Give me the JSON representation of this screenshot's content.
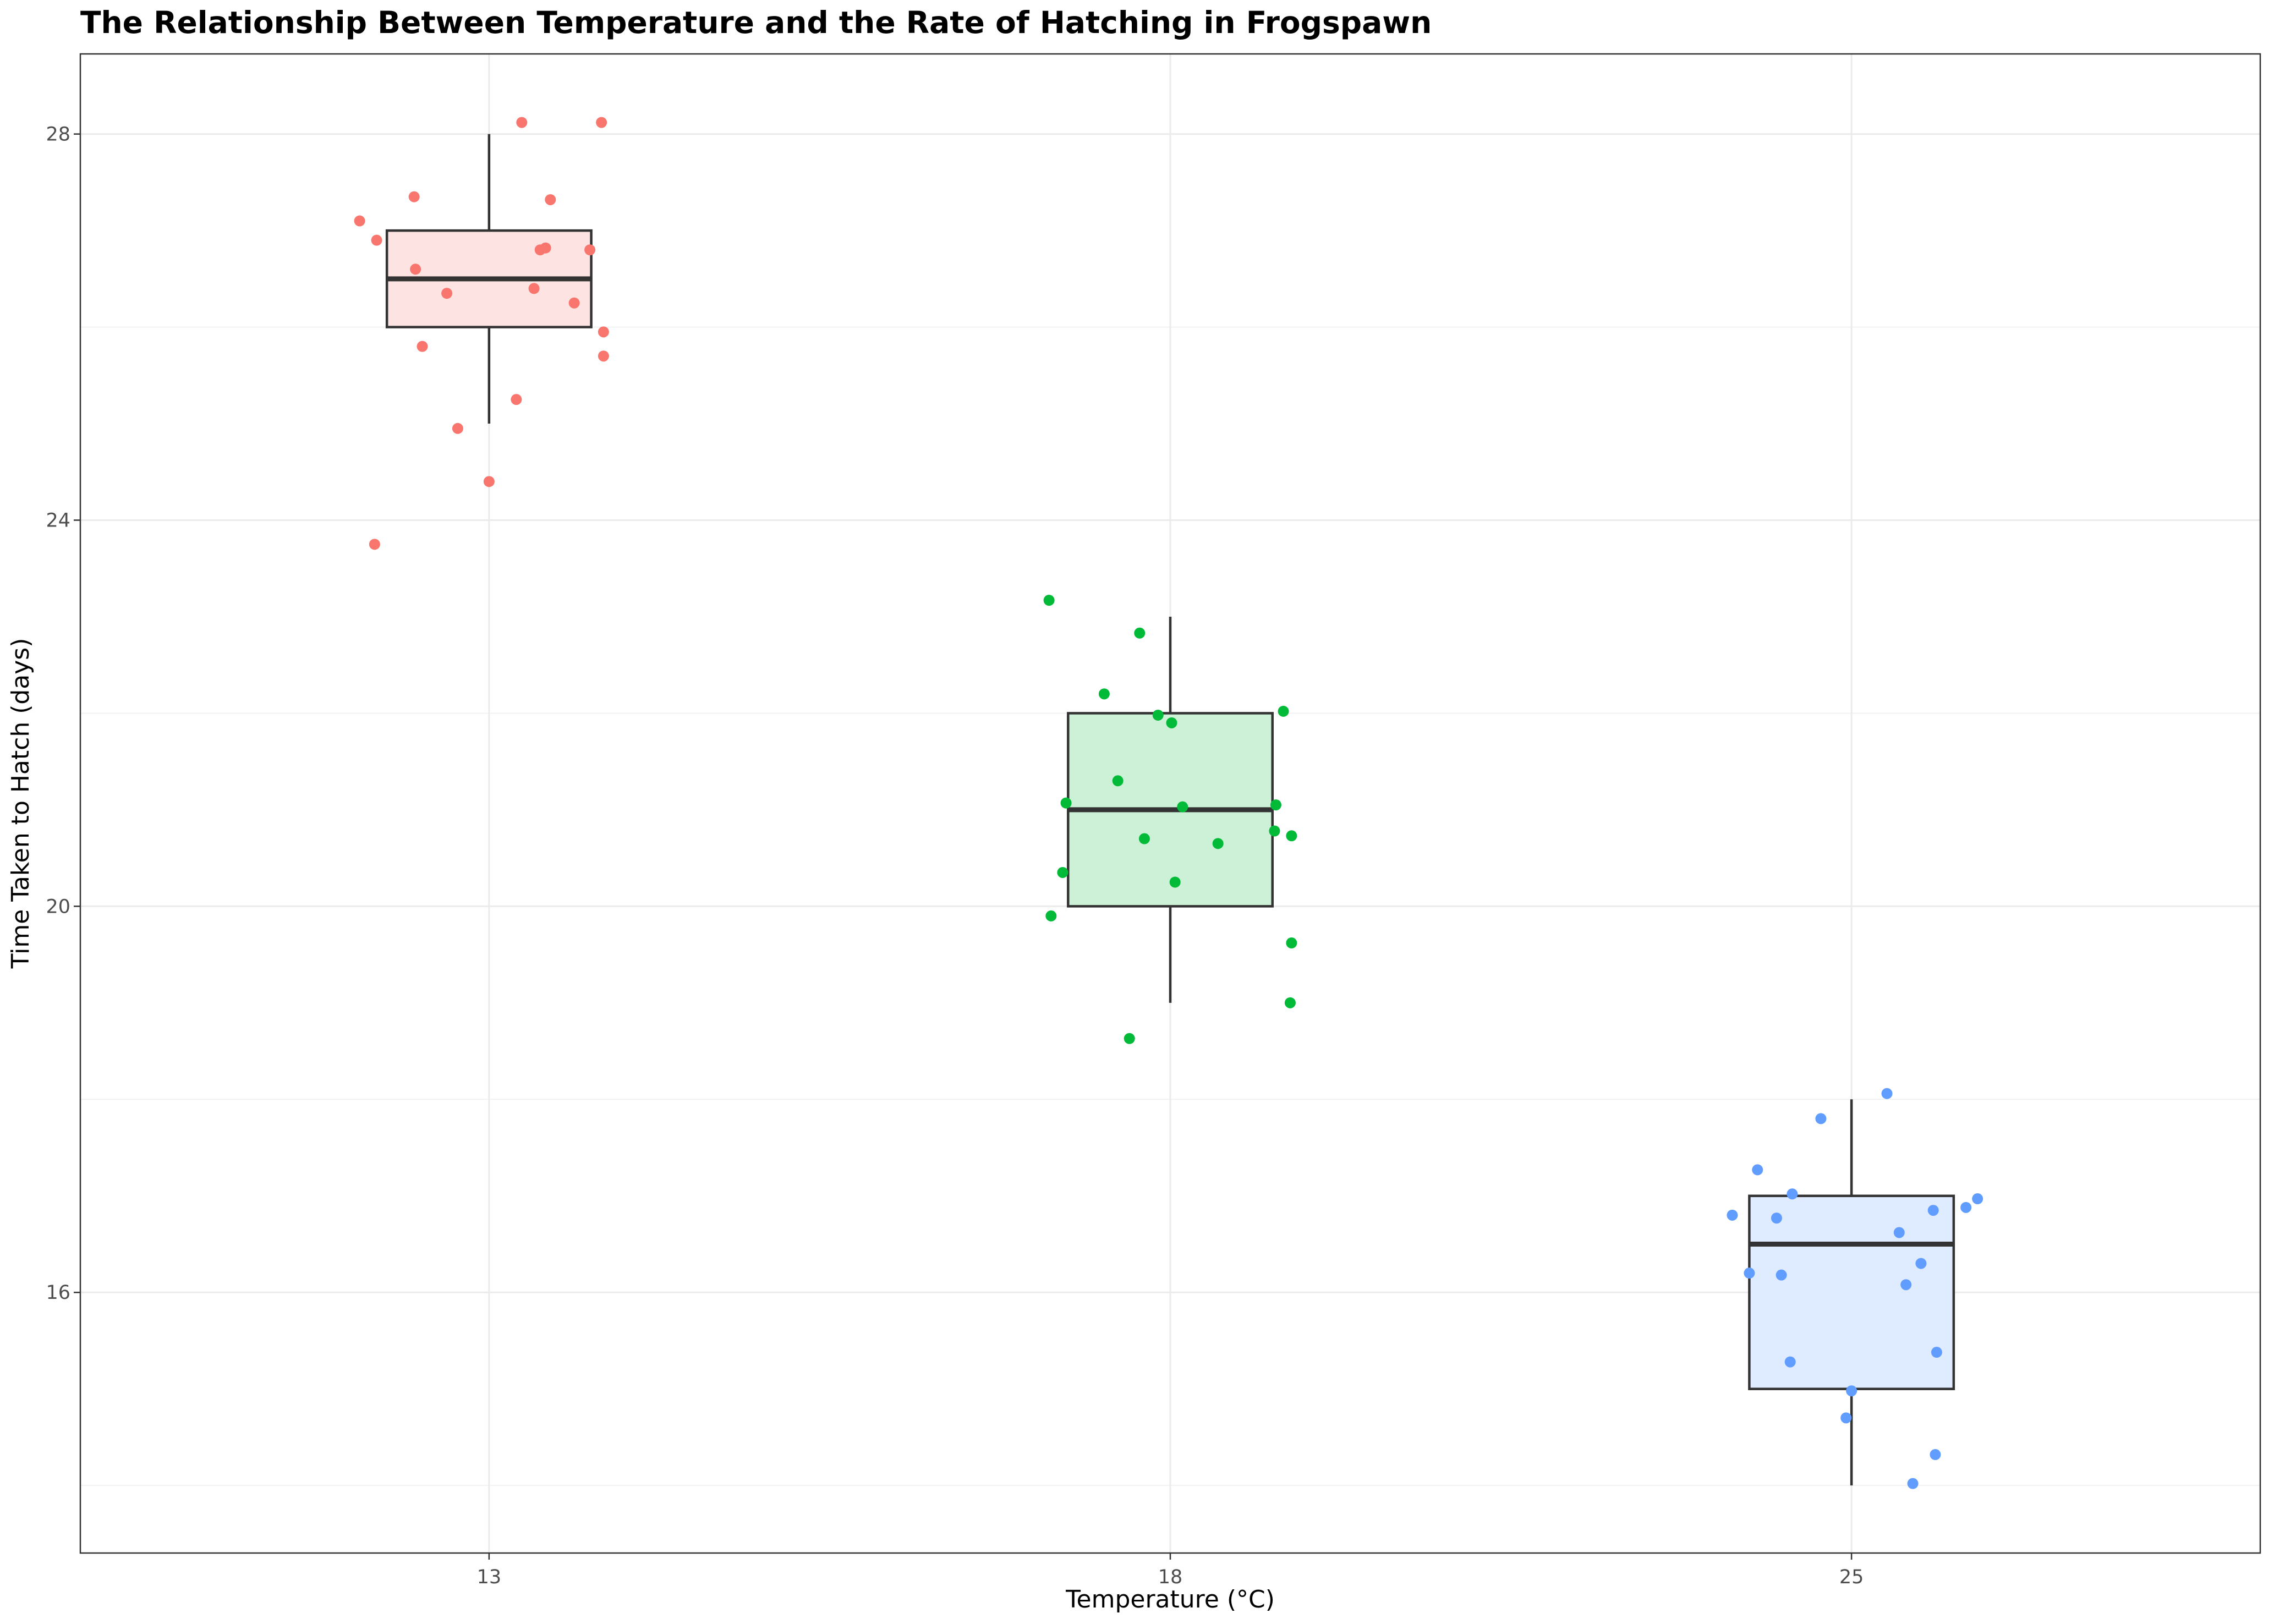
{
  "chart_data": {
    "type": "boxplot",
    "title": "The Relationship Between Temperature and the Rate of Hatching in Frogspawn",
    "xlabel": "Temperature (°C)",
    "ylabel": "Time Taken to Hatch (days)",
    "ylim": [
      13.3,
      28.83
    ],
    "yticks": [
      16,
      20,
      24,
      28
    ],
    "grid": true,
    "legend": "none",
    "categories": [
      "13",
      "18",
      "25"
    ],
    "series": [
      {
        "category": "13",
        "color": "#F8766D",
        "fill": "#FDE4E2",
        "box": {
          "min": 25,
          "q1": 26,
          "median": 26.5,
          "q3": 27,
          "max": 28
        },
        "points": [
          {
            "x": -0.19,
            "y": 27.1
          },
          {
            "x": -0.165,
            "y": 26.9
          },
          {
            "x": -0.11,
            "y": 27.35
          },
          {
            "x": -0.108,
            "y": 26.6
          },
          {
            "x": -0.098,
            "y": 25.8
          },
          {
            "x": -0.062,
            "y": 26.35
          },
          {
            "x": -0.046,
            "y": 24.95
          },
          {
            "x": 0.0,
            "y": 24.4
          },
          {
            "x": 0.04,
            "y": 25.25
          },
          {
            "x": 0.048,
            "y": 28.12
          },
          {
            "x": 0.066,
            "y": 26.4
          },
          {
            "x": 0.075,
            "y": 26.8
          },
          {
            "x": 0.083,
            "y": 26.82
          },
          {
            "x": 0.09,
            "y": 27.32
          },
          {
            "x": 0.125,
            "y": 26.25
          },
          {
            "x": 0.148,
            "y": 26.8
          },
          {
            "x": 0.165,
            "y": 28.12
          },
          {
            "x": 0.168,
            "y": 25.7
          },
          {
            "x": 0.168,
            "y": 25.95
          },
          {
            "x": -0.168,
            "y": 23.75
          }
        ]
      },
      {
        "category": "18",
        "color": "#00BA38",
        "fill": "#CCF1D7",
        "box": {
          "min": 19,
          "q1": 20,
          "median": 21,
          "q3": 22,
          "max": 23
        },
        "points": [
          {
            "x": -0.178,
            "y": 23.17
          },
          {
            "x": -0.175,
            "y": 19.9
          },
          {
            "x": -0.158,
            "y": 20.35
          },
          {
            "x": -0.153,
            "y": 21.07
          },
          {
            "x": -0.097,
            "y": 22.2
          },
          {
            "x": -0.077,
            "y": 21.3
          },
          {
            "x": -0.06,
            "y": 18.63
          },
          {
            "x": -0.045,
            "y": 22.83
          },
          {
            "x": -0.038,
            "y": 20.7
          },
          {
            "x": -0.018,
            "y": 21.98
          },
          {
            "x": 0.002,
            "y": 21.9
          },
          {
            "x": 0.007,
            "y": 20.25
          },
          {
            "x": 0.018,
            "y": 21.03
          },
          {
            "x": 0.07,
            "y": 20.65
          },
          {
            "x": 0.155,
            "y": 21.05
          },
          {
            "x": 0.153,
            "y": 20.78
          },
          {
            "x": 0.166,
            "y": 22.02
          },
          {
            "x": 0.178,
            "y": 20.73
          },
          {
            "x": 0.178,
            "y": 19.62
          },
          {
            "x": 0.176,
            "y": 19.0
          }
        ]
      },
      {
        "category": "25",
        "color": "#619CFF",
        "fill": "#DFEBFF",
        "box": {
          "min": 14,
          "q1": 15,
          "median": 16.5,
          "q3": 17,
          "max": 18
        },
        "points": [
          {
            "x": -0.175,
            "y": 16.8
          },
          {
            "x": -0.15,
            "y": 16.2
          },
          {
            "x": -0.138,
            "y": 17.27
          },
          {
            "x": -0.11,
            "y": 16.77
          },
          {
            "x": -0.103,
            "y": 16.18
          },
          {
            "x": -0.09,
            "y": 15.28
          },
          {
            "x": -0.087,
            "y": 17.02
          },
          {
            "x": -0.045,
            "y": 17.8
          },
          {
            "x": -0.008,
            "y": 14.7
          },
          {
            "x": 0.0,
            "y": 14.98
          },
          {
            "x": 0.052,
            "y": 18.06
          },
          {
            "x": 0.07,
            "y": 16.62
          },
          {
            "x": 0.08,
            "y": 16.08
          },
          {
            "x": 0.09,
            "y": 14.02
          },
          {
            "x": 0.102,
            "y": 16.3
          },
          {
            "x": 0.12,
            "y": 16.85
          },
          {
            "x": 0.123,
            "y": 14.32
          },
          {
            "x": 0.125,
            "y": 15.38
          },
          {
            "x": 0.168,
            "y": 16.88
          },
          {
            "x": 0.185,
            "y": 16.97
          }
        ]
      }
    ]
  }
}
